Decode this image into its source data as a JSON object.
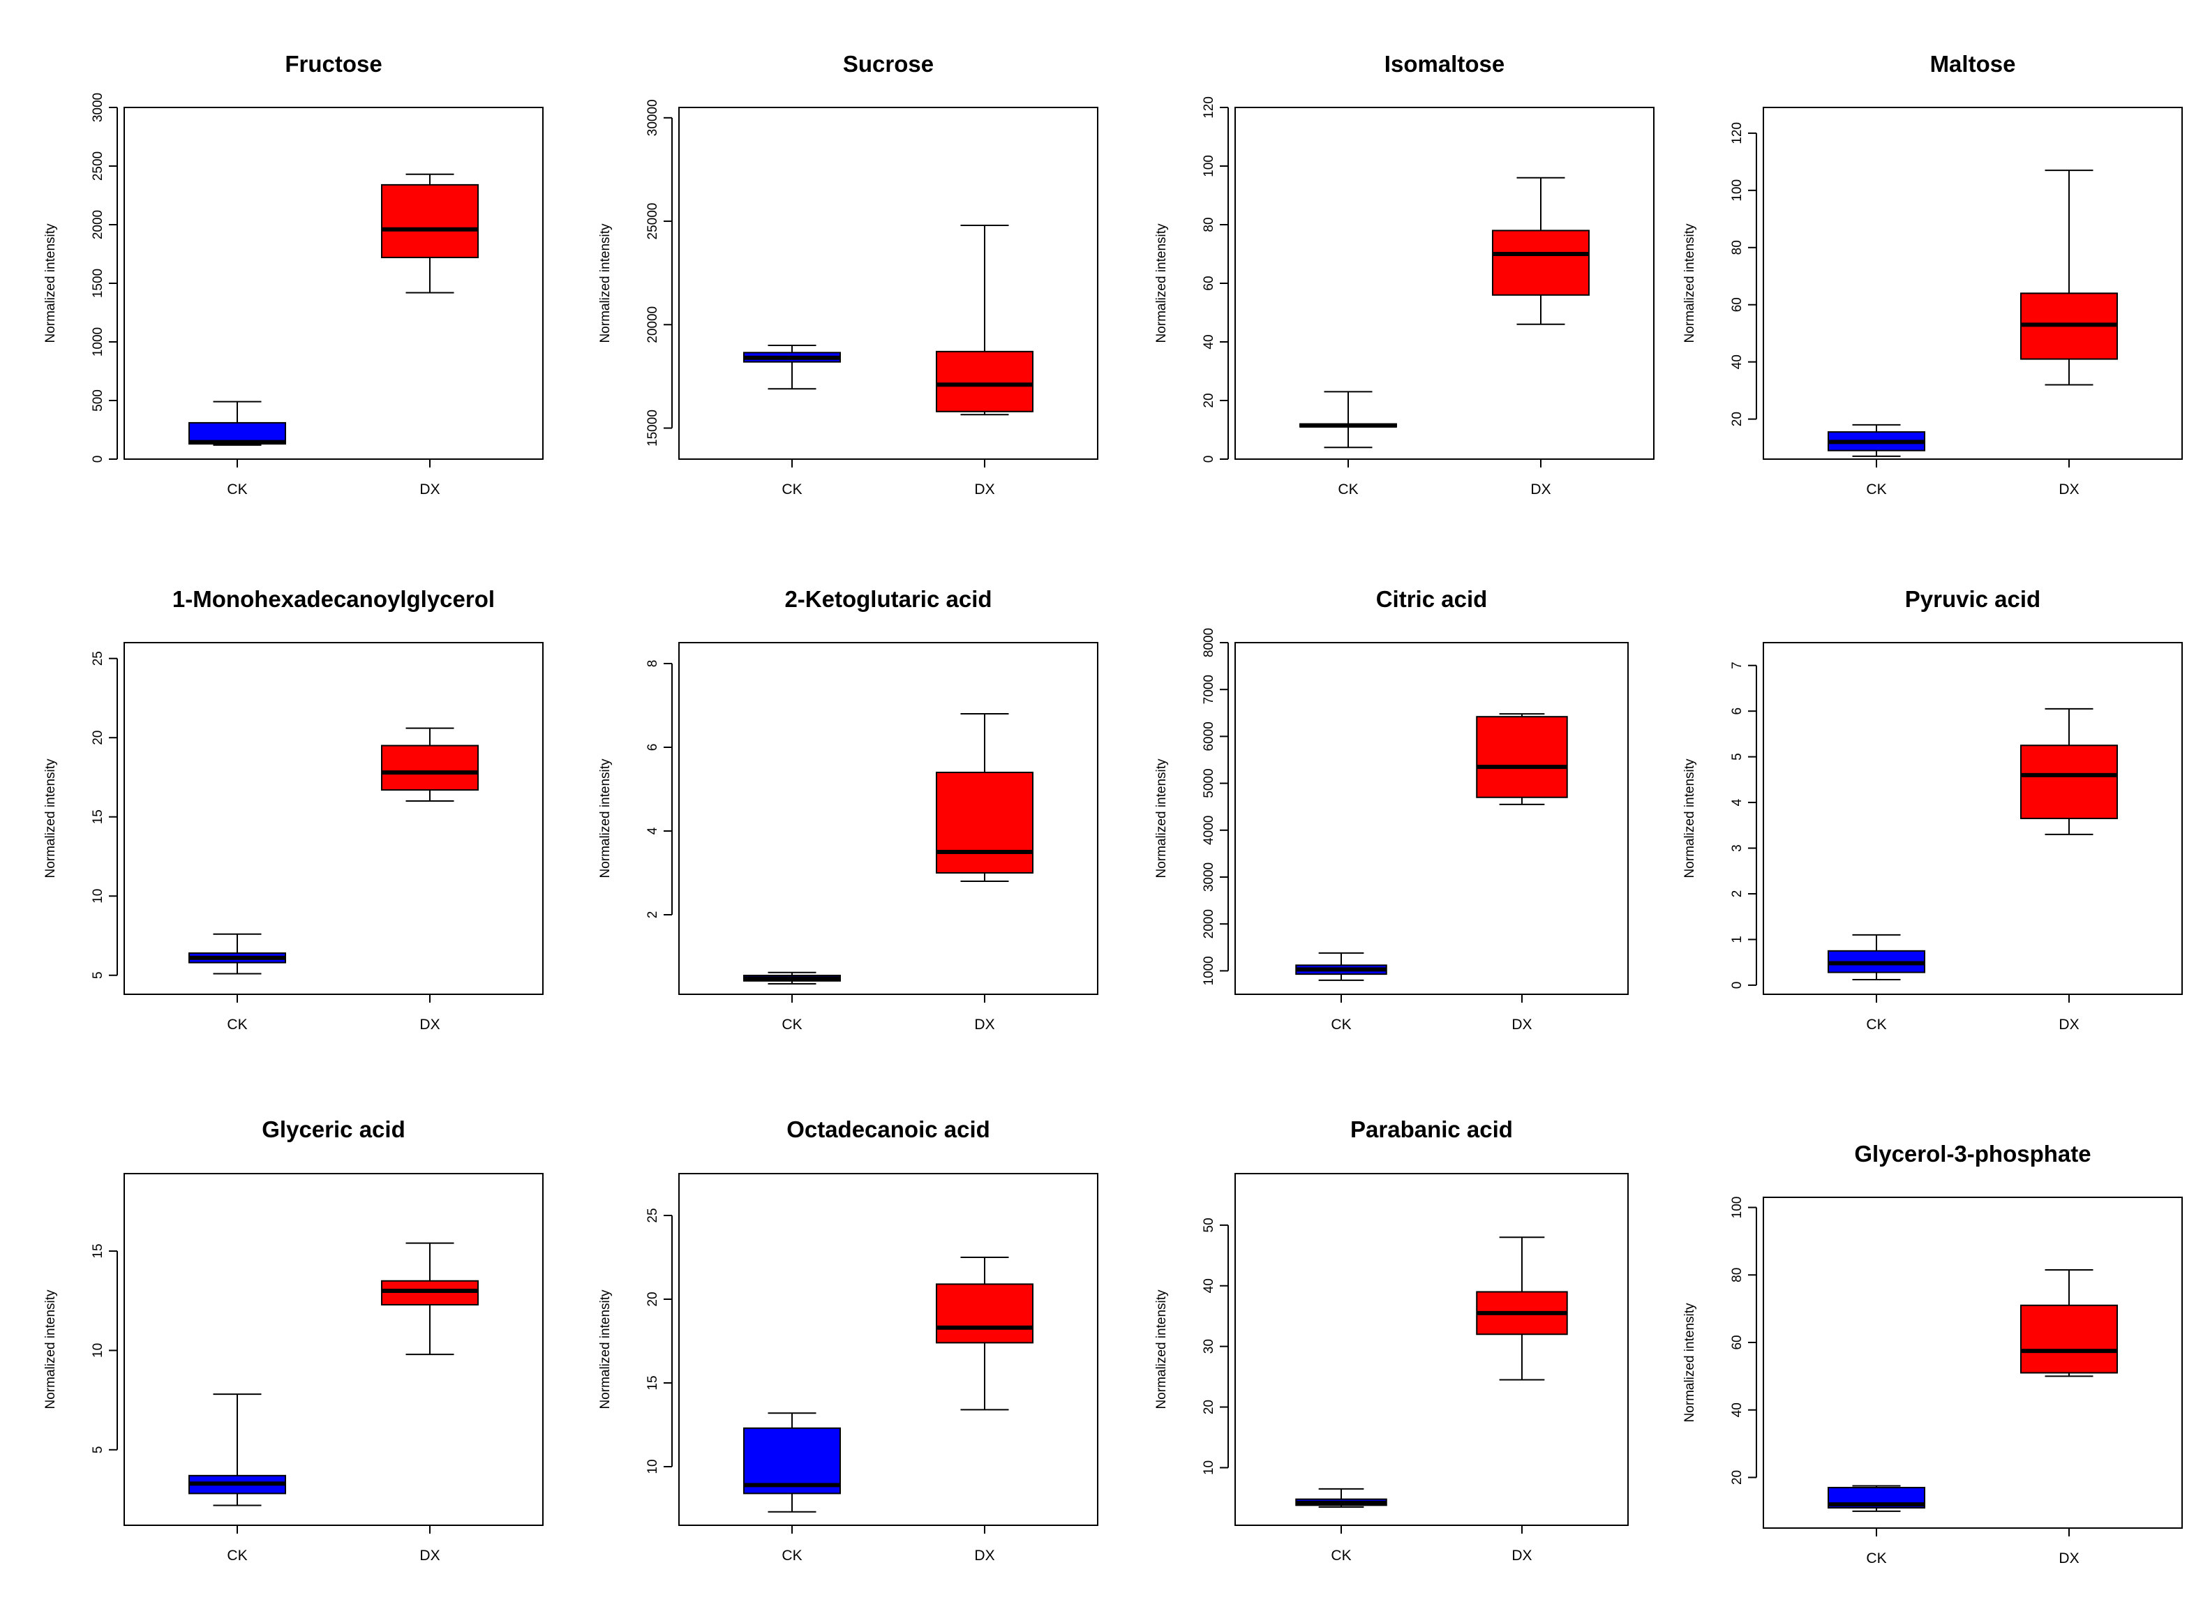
{
  "chart_data": [
    {
      "type": "box",
      "title": "Fructose",
      "ylabel": "Normalized intensity",
      "categories": [
        "CK",
        "DX"
      ],
      "ylim": [
        0,
        3000
      ],
      "yticks": [
        0,
        500,
        1000,
        1500,
        2000,
        2500,
        3000
      ],
      "colors": [
        "#0000ff",
        "#ff0000"
      ],
      "boxes": [
        {
          "min": 120,
          "q1": 130,
          "median": 145,
          "q3": 310,
          "max": 490
        },
        {
          "min": 1420,
          "q1": 1720,
          "median": 1960,
          "q3": 2340,
          "max": 2430
        }
      ]
    },
    {
      "type": "box",
      "title": "Sucrose",
      "ylabel": "Normalized intensity",
      "categories": [
        "CK",
        "DX"
      ],
      "ylim": [
        13500,
        30500
      ],
      "yticks": [
        15000,
        20000,
        25000,
        30000
      ],
      "colors": [
        "#0000ff",
        "#ff0000"
      ],
      "boxes": [
        {
          "min": 16900,
          "q1": 18200,
          "median": 18400,
          "q3": 18650,
          "max": 19000
        },
        {
          "min": 15650,
          "q1": 15800,
          "median": 17100,
          "q3": 18700,
          "max": 24800
        }
      ]
    },
    {
      "type": "box",
      "title": "Isomaltose",
      "ylabel": "Normalized intensity",
      "categories": [
        "CK",
        "DX"
      ],
      "ylim": [
        0,
        120
      ],
      "yticks": [
        0,
        20,
        40,
        60,
        80,
        100,
        120
      ],
      "colors": [
        "#0000ff",
        "#ff0000"
      ],
      "boxes": [
        {
          "min": 4,
          "q1": 11,
          "median": 11.5,
          "q3": 12,
          "max": 23
        },
        {
          "min": 46,
          "q1": 56,
          "median": 70,
          "q3": 78,
          "max": 96
        }
      ]
    },
    {
      "type": "box",
      "title": "Maltose",
      "ylabel": "Normalized intensity",
      "categories": [
        "CK",
        "DX"
      ],
      "ylim": [
        6,
        129
      ],
      "yticks": [
        20,
        40,
        60,
        80,
        100,
        120
      ],
      "colors": [
        "#0000ff",
        "#ff0000"
      ],
      "boxes": [
        {
          "min": 7,
          "q1": 9,
          "median": 12,
          "q3": 15.5,
          "max": 18
        },
        {
          "min": 32,
          "q1": 41,
          "median": 53,
          "q3": 64,
          "max": 107
        }
      ]
    },
    {
      "type": "box",
      "title": "1-Monohexadecanoylglycerol",
      "ylabel": "Normalized intensity",
      "categories": [
        "CK",
        "DX"
      ],
      "ylim": [
        3.8,
        26
      ],
      "yticks": [
        5,
        10,
        15,
        20,
        25
      ],
      "colors": [
        "#0000ff",
        "#ff0000"
      ],
      "boxes": [
        {
          "min": 5.1,
          "q1": 5.8,
          "median": 6.1,
          "q3": 6.4,
          "max": 7.6
        },
        {
          "min": 16,
          "q1": 16.7,
          "median": 17.8,
          "q3": 19.5,
          "max": 20.6
        }
      ]
    },
    {
      "type": "box",
      "title": "2-Ketoglutaric acid",
      "ylabel": "Normalized intensity",
      "categories": [
        "CK",
        "DX"
      ],
      "ylim": [
        0.1,
        8.5
      ],
      "yticks": [
        2,
        4,
        6,
        8
      ],
      "colors": [
        "#0000ff",
        "#ff0000"
      ],
      "boxes": [
        {
          "min": 0.35,
          "q1": 0.42,
          "median": 0.48,
          "q3": 0.55,
          "max": 0.62
        },
        {
          "min": 2.8,
          "q1": 3.0,
          "median": 3.5,
          "q3": 5.4,
          "max": 6.8
        }
      ]
    },
    {
      "type": "box",
      "title": "Citric acid",
      "ylabel": "Normalized intensity",
      "categories": [
        "CK",
        "DX"
      ],
      "ylim": [
        500,
        8000
      ],
      "yticks": [
        1000,
        2000,
        3000,
        4000,
        5000,
        6000,
        7000,
        8000
      ],
      "colors": [
        "#0000ff",
        "#ff0000"
      ],
      "boxes": [
        {
          "min": 800,
          "q1": 930,
          "median": 1030,
          "q3": 1120,
          "max": 1380
        },
        {
          "min": 4550,
          "q1": 4700,
          "median": 5350,
          "q3": 6420,
          "max": 6480
        }
      ]
    },
    {
      "type": "box",
      "title": "Pyruvic acid",
      "ylabel": "Normalized intensity",
      "categories": [
        "CK",
        "DX"
      ],
      "ylim": [
        -0.2,
        7.5
      ],
      "yticks": [
        0,
        1,
        2,
        3,
        4,
        5,
        6,
        7
      ],
      "colors": [
        "#0000ff",
        "#ff0000"
      ],
      "boxes": [
        {
          "min": 0.12,
          "q1": 0.28,
          "median": 0.48,
          "q3": 0.75,
          "max": 1.1
        },
        {
          "min": 3.3,
          "q1": 3.65,
          "median": 4.6,
          "q3": 5.25,
          "max": 6.05
        }
      ]
    },
    {
      "type": "box",
      "title": "Glyceric acid",
      "ylabel": "Normalized intensity",
      "categories": [
        "CK",
        "DX"
      ],
      "ylim": [
        1.2,
        18.9
      ],
      "yticks": [
        5,
        10,
        15
      ],
      "colors": [
        "#0000ff",
        "#ff0000"
      ],
      "boxes": [
        {
          "min": 2.2,
          "q1": 2.8,
          "median": 3.3,
          "q3": 3.7,
          "max": 7.8
        },
        {
          "min": 9.8,
          "q1": 12.3,
          "median": 13.0,
          "q3": 13.5,
          "max": 15.4
        }
      ]
    },
    {
      "type": "box",
      "title": "Octadecanoic acid",
      "ylabel": "Normalized intensity",
      "categories": [
        "CK",
        "DX"
      ],
      "ylim": [
        6.5,
        27.5
      ],
      "yticks": [
        10,
        15,
        20,
        25
      ],
      "colors": [
        "#0000ff",
        "#ff0000"
      ],
      "boxes": [
        {
          "min": 7.3,
          "q1": 8.4,
          "median": 8.9,
          "q3": 12.3,
          "max": 13.2
        },
        {
          "min": 13.4,
          "q1": 17.4,
          "median": 18.3,
          "q3": 20.9,
          "max": 22.5
        }
      ]
    },
    {
      "type": "box",
      "title": "Parabanic acid",
      "ylabel": "Normalized intensity",
      "categories": [
        "CK",
        "DX"
      ],
      "ylim": [
        0.5,
        58.5
      ],
      "yticks": [
        10,
        20,
        30,
        40,
        50
      ],
      "colors": [
        "#0000ff",
        "#ff0000"
      ],
      "boxes": [
        {
          "min": 3.5,
          "q1": 3.8,
          "median": 4.2,
          "q3": 4.8,
          "max": 6.5
        },
        {
          "min": 24.5,
          "q1": 32,
          "median": 35.5,
          "q3": 39,
          "max": 48
        }
      ]
    },
    {
      "type": "box",
      "title": "Glycerol-3-phosphate",
      "ylabel": "Normalized intensity",
      "categories": [
        "CK",
        "DX"
      ],
      "ylim": [
        5,
        103
      ],
      "yticks": [
        20,
        40,
        60,
        80,
        100
      ],
      "colors": [
        "#0000ff",
        "#ff0000"
      ],
      "boxes": [
        {
          "min": 10,
          "q1": 11,
          "median": 12,
          "q3": 17,
          "max": 17.5
        },
        {
          "min": 50,
          "q1": 51,
          "median": 57.5,
          "q3": 71,
          "max": 81.5
        }
      ]
    }
  ]
}
